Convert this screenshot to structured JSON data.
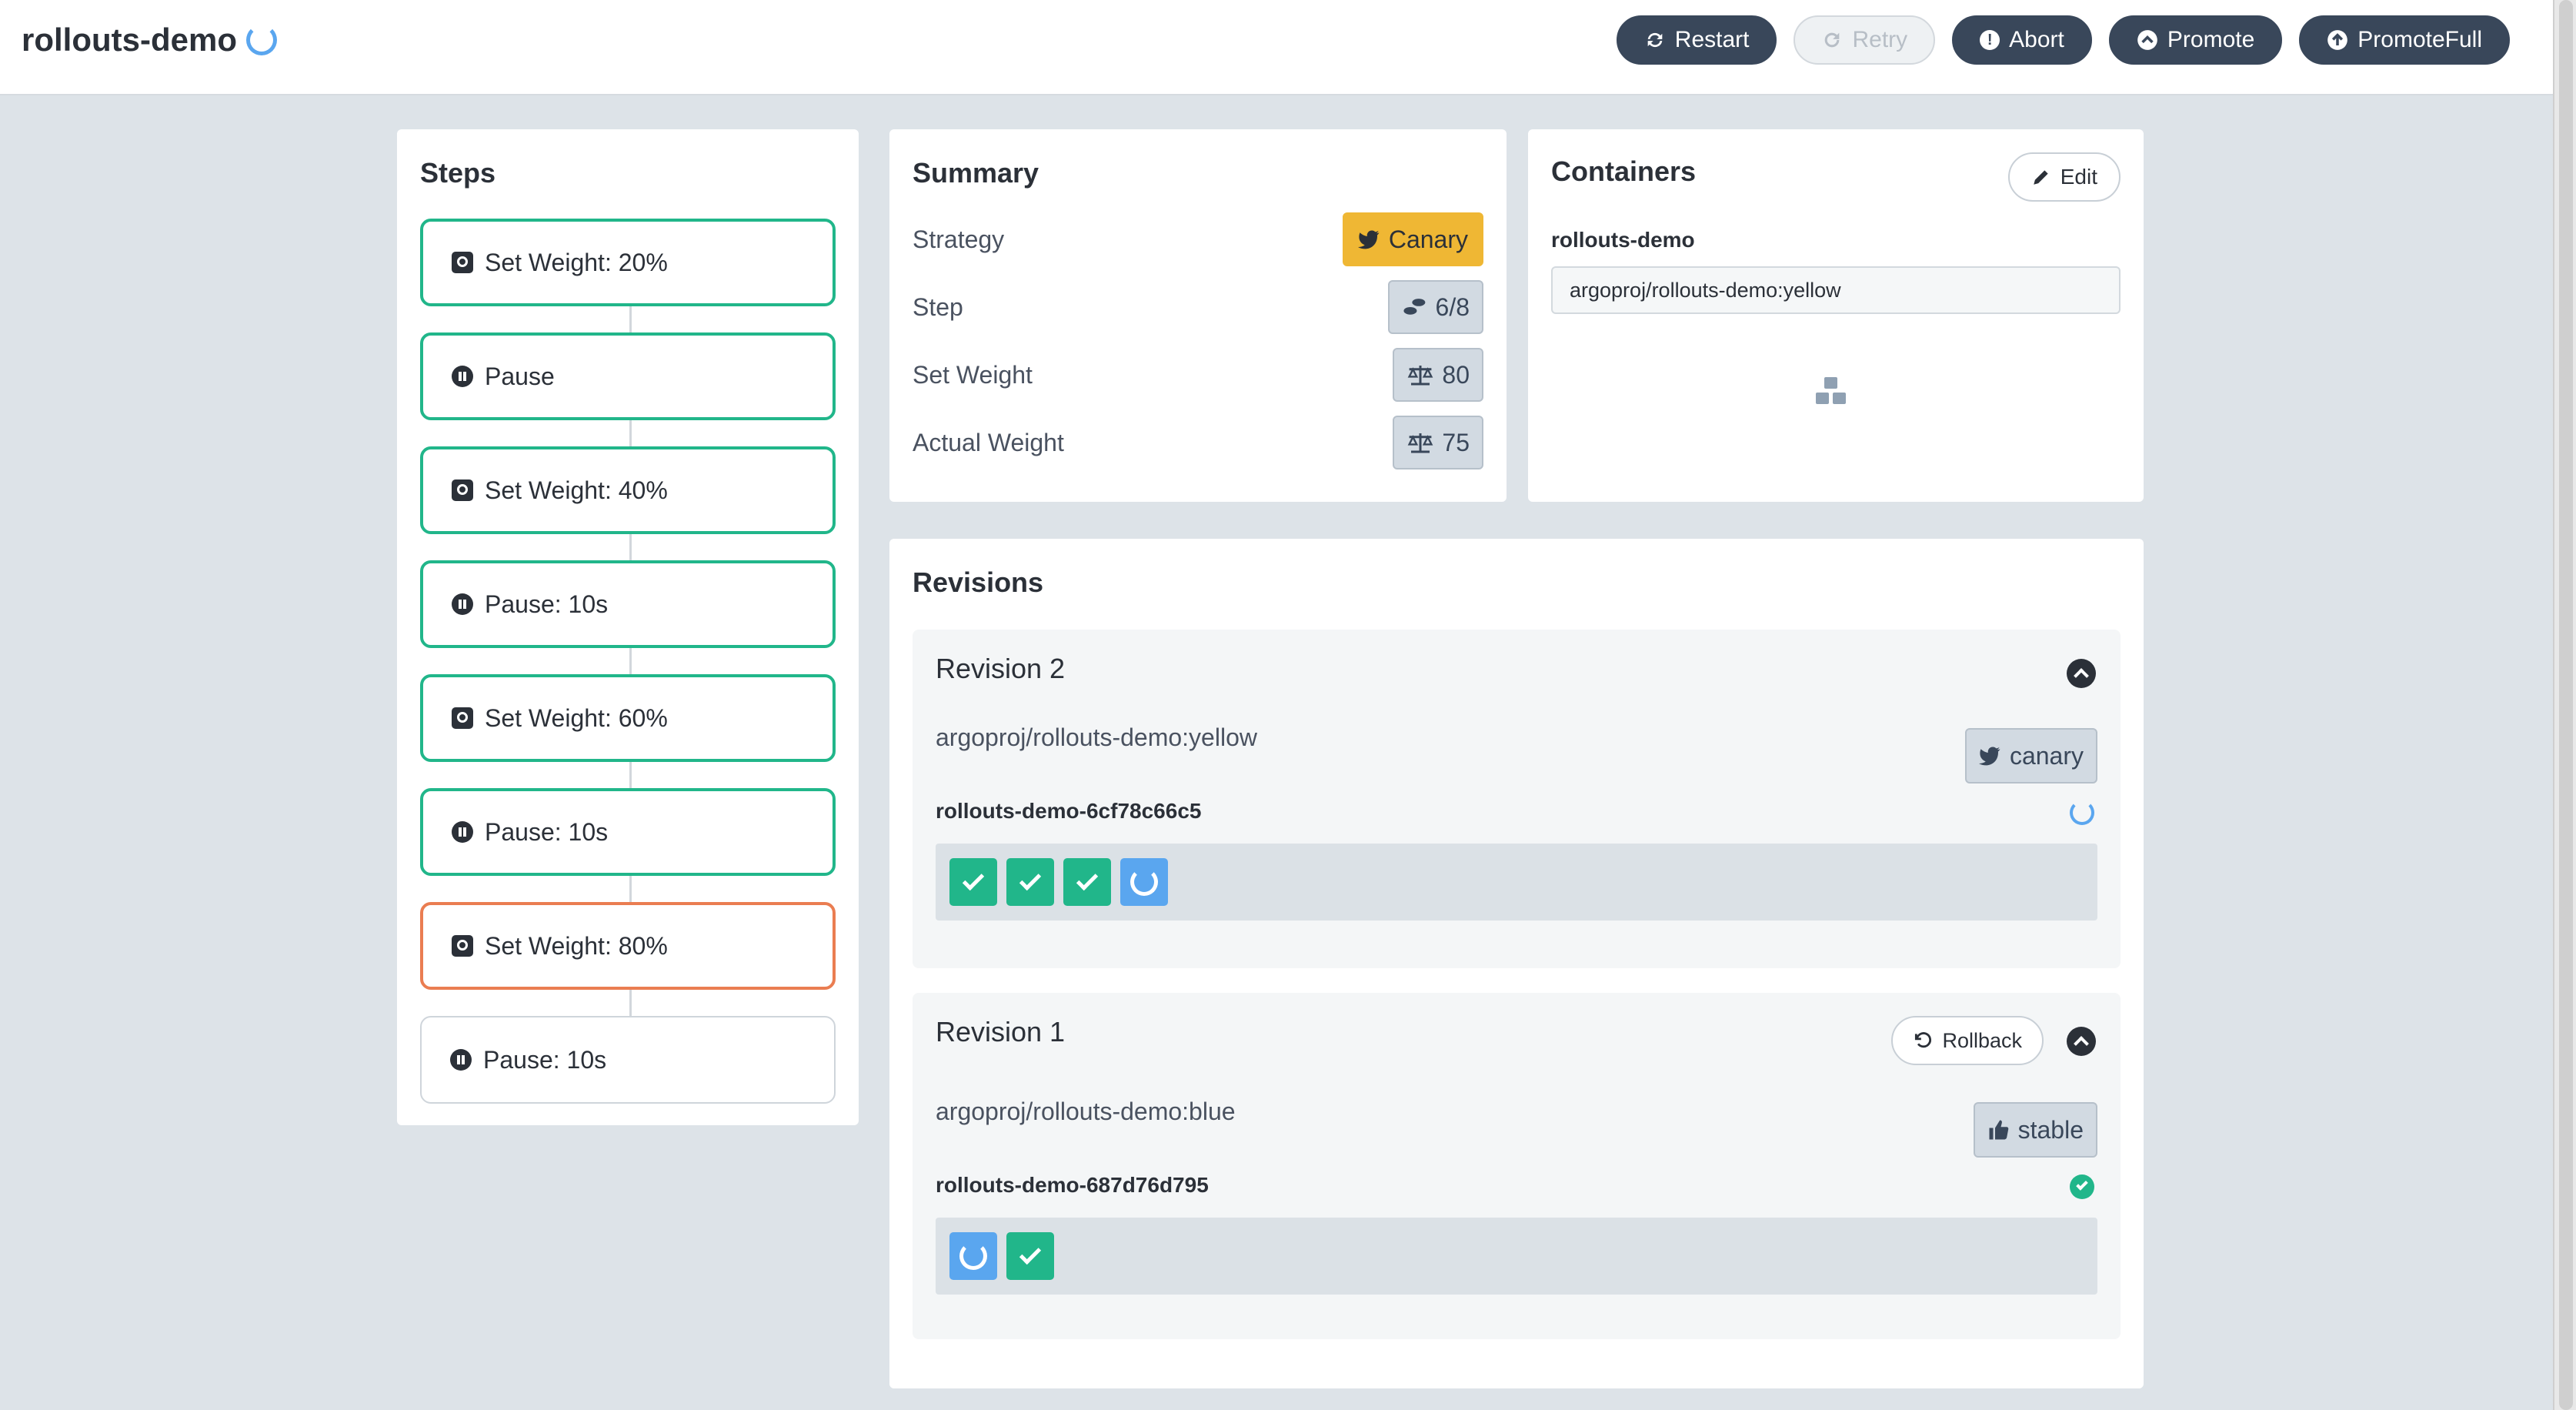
{
  "header": {
    "title": "rollouts-demo",
    "actions": [
      {
        "label": "Restart",
        "icon": "restart-icon",
        "disabled": false
      },
      {
        "label": "Retry",
        "icon": "retry-icon",
        "disabled": true
      },
      {
        "label": "Abort",
        "icon": "abort-icon",
        "disabled": false
      },
      {
        "label": "Promote",
        "icon": "promote-icon",
        "disabled": false
      },
      {
        "label": "PromoteFull",
        "icon": "promote-full-icon",
        "disabled": false
      }
    ]
  },
  "steps": {
    "title": "Steps",
    "items": [
      {
        "label": "Set Weight: 20%",
        "icon": "weight-icon",
        "state": "complete"
      },
      {
        "label": "Pause",
        "icon": "pause-icon",
        "state": "complete"
      },
      {
        "label": "Set Weight: 40%",
        "icon": "weight-icon",
        "state": "complete"
      },
      {
        "label": "Pause: 10s",
        "icon": "pause-icon",
        "state": "complete"
      },
      {
        "label": "Set Weight: 60%",
        "icon": "weight-icon",
        "state": "complete"
      },
      {
        "label": "Pause: 10s",
        "icon": "pause-icon",
        "state": "complete"
      },
      {
        "label": "Set Weight: 80%",
        "icon": "weight-icon",
        "state": "current"
      },
      {
        "label": "Pause: 10s",
        "icon": "pause-icon",
        "state": "pending"
      }
    ]
  },
  "summary": {
    "title": "Summary",
    "rows": [
      {
        "label": "Strategy",
        "value": "Canary",
        "icon": "canary-bird-icon"
      },
      {
        "label": "Step",
        "value": "6/8",
        "icon": "footsteps-icon"
      },
      {
        "label": "Set Weight",
        "value": "80",
        "icon": "scale-icon"
      },
      {
        "label": "Actual Weight",
        "value": "75",
        "icon": "scale-icon"
      }
    ]
  },
  "containers": {
    "title": "Containers",
    "edit_label": "Edit",
    "name": "rollouts-demo",
    "image": "argoproj/rollouts-demo:yellow"
  },
  "revisions": {
    "title": "Revisions",
    "items": [
      {
        "title": "Revision 2",
        "image": "argoproj/rollouts-demo:yellow",
        "badge": "canary",
        "replicaset": "rollouts-demo-6cf78c66c5",
        "status": "progressing",
        "pods": [
          "ok",
          "ok",
          "ok",
          "progressing"
        ]
      },
      {
        "title": "Revision 1",
        "rollback_label": "Rollback",
        "image": "argoproj/rollouts-demo:blue",
        "badge": "stable",
        "replicaset": "rollouts-demo-687d76d795",
        "status": "healthy",
        "pods": [
          "progressing",
          "ok"
        ]
      }
    ]
  },
  "colors": {
    "accent_green": "#21b68a",
    "current_orange": "#ea7d51",
    "canary_yellow": "#efb734",
    "progress_blue": "#5aa6ef",
    "dark_button": "#39475a",
    "background": "#dde3e8"
  }
}
